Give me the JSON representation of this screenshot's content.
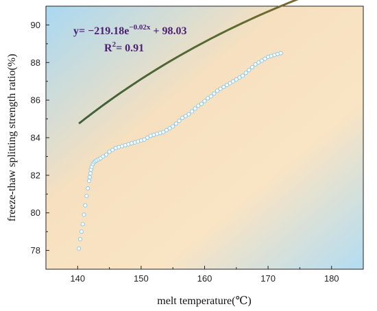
{
  "chart_data": {
    "type": "scatter",
    "xlabel": "melt temperature(℃)",
    "ylabel": "freeze-thaw splitting strength ratio(%)",
    "xlim": [
      135,
      185
    ],
    "ylim": [
      77,
      91
    ],
    "x_ticks": [
      140,
      150,
      160,
      170,
      180
    ],
    "y_ticks": [
      78,
      80,
      82,
      84,
      86,
      88,
      90
    ],
    "equation_main": "y= −219.18e",
    "equation_exp": "−0.02x",
    "equation_tail": " + 98.03",
    "r2_prefix": "R",
    "r2_sup": "2",
    "r2_value": "= 0.91",
    "fit": {
      "a": -219.18,
      "b": -0.02,
      "c": 98.03,
      "x_range": [
        140.2,
        180.8
      ]
    },
    "series": [
      {
        "type": "scatter",
        "marker": "open-circle",
        "x": [
          140.2,
          140.4,
          140.6,
          140.8,
          141.0,
          141.2,
          141.4,
          141.6,
          141.8,
          141.9,
          142.0,
          142.1,
          142.2,
          142.4,
          142.6,
          142.8,
          143.0,
          143.3,
          143.6,
          144.0,
          144.5,
          145.0,
          145.5,
          146.0,
          146.5,
          147.0,
          147.5,
          148.0,
          148.5,
          149.0,
          149.5,
          150.0,
          150.5,
          151.0,
          151.5,
          152.0,
          152.5,
          153.0,
          153.5,
          154.0,
          154.5,
          155.0,
          155.5,
          156.0,
          156.5,
          157.0,
          157.5,
          158.0,
          158.5,
          159.0,
          159.5,
          160.0,
          160.5,
          161.0,
          161.5,
          162.0,
          162.5,
          163.0,
          163.5,
          164.0,
          164.5,
          165.0,
          165.5,
          166.0,
          166.5,
          167.0,
          167.5,
          168.0,
          168.5,
          169.0,
          169.5,
          170.0,
          170.5,
          171.0,
          171.5,
          172.0
        ],
        "y": [
          78.1,
          78.6,
          79.0,
          79.4,
          79.9,
          80.4,
          80.9,
          81.3,
          81.7,
          81.9,
          82.1,
          82.3,
          82.45,
          82.6,
          82.7,
          82.75,
          82.8,
          82.85,
          82.9,
          83.0,
          83.1,
          83.25,
          83.35,
          83.45,
          83.5,
          83.55,
          83.6,
          83.65,
          83.7,
          83.75,
          83.8,
          83.85,
          83.9,
          84.0,
          84.1,
          84.15,
          84.2,
          84.25,
          84.3,
          84.4,
          84.5,
          84.6,
          84.75,
          84.9,
          85.05,
          85.15,
          85.25,
          85.4,
          85.55,
          85.7,
          85.8,
          85.95,
          86.1,
          86.2,
          86.35,
          86.5,
          86.6,
          86.7,
          86.8,
          86.9,
          87.0,
          87.1,
          87.2,
          87.3,
          87.45,
          87.6,
          87.75,
          87.9,
          88.0,
          88.1,
          88.2,
          88.3,
          88.35,
          88.4,
          88.45,
          88.5
        ]
      }
    ],
    "colors": {
      "marker_stroke": "#8ecae6",
      "fit_line": "#4f6b33",
      "bg_blue": "#b6def3",
      "bg_orange": "#f8e2c0",
      "equation": "#4b1f6f"
    },
    "grid": false
  }
}
